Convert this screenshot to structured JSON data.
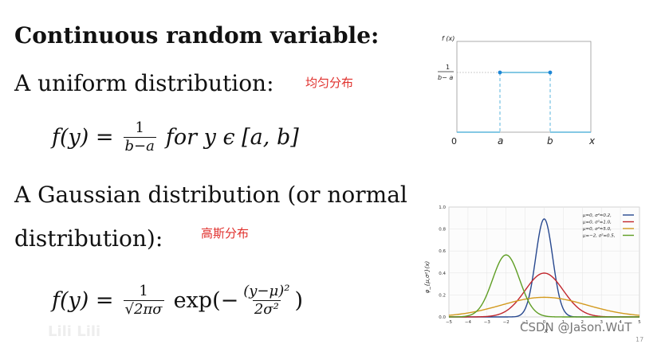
{
  "slide": {
    "heading": "Continuous random variable:",
    "uniform_line": "A uniform distribution:",
    "uniform_note": "均匀分布",
    "uniform_formula": {
      "lhs": "f(y) =",
      "frac_num": "1",
      "frac_den": "b−a",
      "rhs": "for y ϵ [a, b]"
    },
    "gaussian_line1": "A Gaussian distribution (or normal",
    "gaussian_line2": "distribution):",
    "gaussian_note": "高斯分布",
    "gaussian_formula": {
      "lhs": "f(y) =",
      "frac_num": "1",
      "frac_den": "√2πσ",
      "exp_open": "exp(−",
      "frac2_num": "(y−μ)²",
      "frac2_den": "2σ²",
      "exp_close": ")"
    },
    "watermark": "CSDN @Jason.WuT",
    "page_number": "17",
    "logo_text": "Lili Lili"
  },
  "uniform_figure": {
    "y_axis_label": "f (x)",
    "density_label_num": "1",
    "density_label_den": "b− a",
    "x_tick_labels": [
      "0",
      "a",
      "b",
      "x"
    ],
    "line_color": "#5bb6dc"
  },
  "chart_data": {
    "type": "line",
    "title": "",
    "xlabel": "x",
    "ylabel": "φ_{μ,σ²}(x)",
    "xlim": [
      -5,
      5
    ],
    "ylim": [
      0,
      1.0
    ],
    "x_ticks": [
      -5,
      -4,
      -3,
      -2,
      -1,
      0,
      1,
      2,
      3,
      4,
      5
    ],
    "y_ticks": [
      0.0,
      0.2,
      0.4,
      0.6,
      0.8,
      1.0
    ],
    "grid": true,
    "legend_position": "top-right",
    "series": [
      {
        "name": "μ=0,  σ²=0.2,",
        "mu": 0,
        "variance": 0.2,
        "color": "#27488f"
      },
      {
        "name": "μ=0,  σ²=1.0,",
        "mu": 0,
        "variance": 1.0,
        "color": "#c1272d"
      },
      {
        "name": "μ=0,  σ²=5.0,",
        "mu": 0,
        "variance": 5.0,
        "color": "#d39a1e"
      },
      {
        "name": "μ=−2,  σ²=0.5,",
        "mu": -2,
        "variance": 0.5,
        "color": "#5f9e24"
      }
    ]
  }
}
